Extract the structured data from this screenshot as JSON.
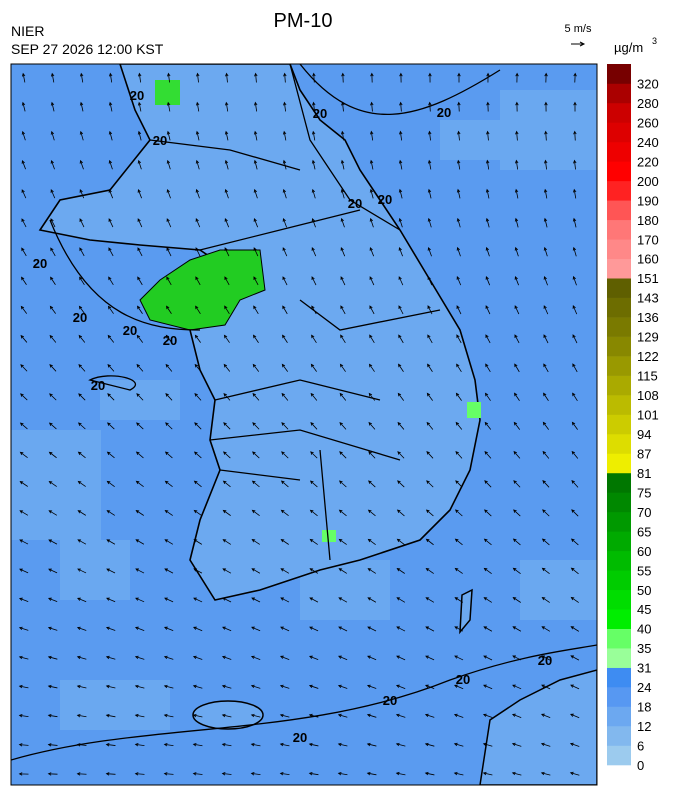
{
  "header": {
    "title": "PM-10",
    "agency": "NIER",
    "timestamp": "SEP 27 2026 12:00 KST",
    "wind_scale": "5 m/s"
  },
  "colorbar": {
    "unit": "µg/m",
    "unit_sup": "3",
    "levels": [
      0,
      6,
      12,
      18,
      24,
      31,
      35,
      40,
      45,
      50,
      55,
      60,
      65,
      70,
      75,
      81,
      87,
      94,
      101,
      108,
      115,
      122,
      129,
      136,
      143,
      151,
      160,
      170,
      180,
      190,
      200,
      220,
      240,
      260,
      280,
      320
    ],
    "colors": [
      "#9ccbee",
      "#82b8ee",
      "#6ca8f0",
      "#5798f2",
      "#3e8cf2",
      "#99ff99",
      "#66ff66",
      "#00ee00",
      "#00dd00",
      "#00cc00",
      "#00bb00",
      "#00aa00",
      "#009900",
      "#008800",
      "#007700",
      "#eeee00",
      "#dddd00",
      "#cccc00",
      "#bbbb00",
      "#aaaa00",
      "#999900",
      "#888800",
      "#7a7a00",
      "#6d6d00",
      "#5f5f00",
      "#ff9999",
      "#ff8888",
      "#ff7777",
      "#ff5555",
      "#ff2222",
      "#ff0000",
      "#ee0000",
      "#dd0000",
      "#cc0000",
      "#aa0000",
      "#770000"
    ]
  },
  "contours": {
    "labels": [
      "20",
      "20",
      "20",
      "20",
      "20",
      "20",
      "20",
      "20",
      "20",
      "20",
      "20",
      "20",
      "20",
      "20",
      "20"
    ]
  }
}
